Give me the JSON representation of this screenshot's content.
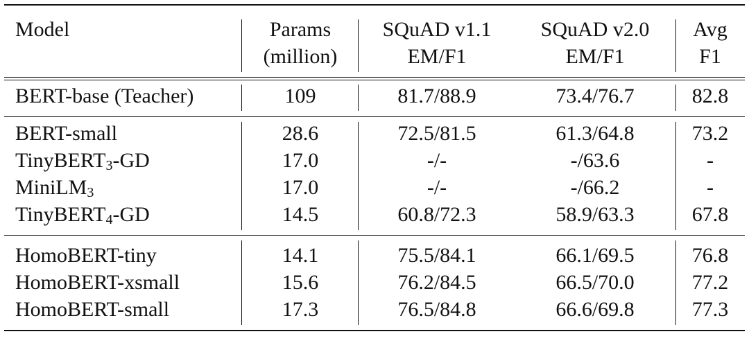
{
  "header": {
    "model": "Model",
    "params_line1": "Params",
    "params_line2": "(million)",
    "squad11_line1": "SQuAD v1.1",
    "squad11_line2": "EM/F1",
    "squad20_line1": "SQuAD v2.0",
    "squad20_line2": "EM/F1",
    "avg_line1": "Avg",
    "avg_line2": "F1"
  },
  "groups": [
    {
      "rows": [
        {
          "model": "BERT-base (Teacher)",
          "sub": "",
          "suffix": "",
          "params": "109",
          "squad11": "81.7/88.9",
          "squad20": "73.4/76.7",
          "avg": "82.8"
        }
      ]
    },
    {
      "rows": [
        {
          "model": "BERT-small",
          "sub": "",
          "suffix": "",
          "params": "28.6",
          "squad11": "72.5/81.5",
          "squad20": "61.3/64.8",
          "avg": "73.2"
        },
        {
          "model": "TinyBERT",
          "sub": "3",
          "suffix": "-GD",
          "params": "17.0",
          "squad11": "-/-",
          "squad20": "-/63.6",
          "avg": "-"
        },
        {
          "model": "MiniLM",
          "sub": "3",
          "suffix": "",
          "params": "17.0",
          "squad11": "-/-",
          "squad20": "-/66.2",
          "avg": "-"
        },
        {
          "model": "TinyBERT",
          "sub": "4",
          "suffix": "-GD",
          "params": "14.5",
          "squad11": "60.8/72.3",
          "squad20": "58.9/63.3",
          "avg": "67.8"
        }
      ]
    },
    {
      "rows": [
        {
          "model": "HomoBERT-tiny",
          "sub": "",
          "suffix": "",
          "params": "14.1",
          "squad11": "75.5/84.1",
          "squad20": "66.1/69.5",
          "avg": "76.8"
        },
        {
          "model": "HomoBERT-xsmall",
          "sub": "",
          "suffix": "",
          "params": "15.6",
          "squad11": "76.2/84.5",
          "squad20": "66.5/70.0",
          "avg": "77.2"
        },
        {
          "model": "HomoBERT-small",
          "sub": "",
          "suffix": "",
          "params": "17.3",
          "squad11": "76.5/84.8",
          "squad20": "66.6/69.8",
          "avg": "77.3"
        }
      ]
    }
  ]
}
